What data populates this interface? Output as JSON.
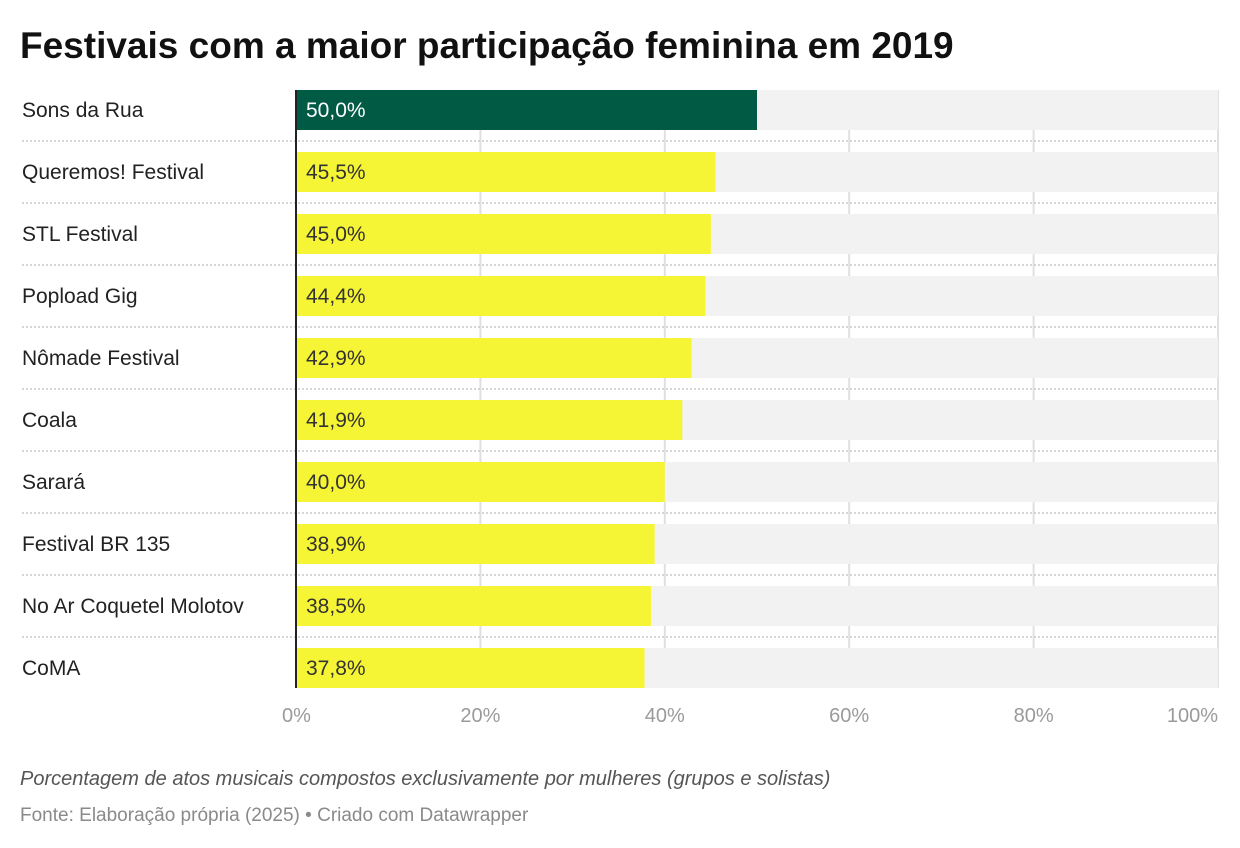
{
  "chart_data": {
    "type": "bar",
    "orientation": "horizontal",
    "title": "Festivais com a maior participação feminina em 2019",
    "categories": [
      "Sons da Rua",
      "Queremos! Festival",
      "STL Festival",
      "Popload Gig",
      "Nômade Festival",
      "Coala",
      "Sarará",
      "Festival BR 135",
      "No Ar Coquetel Molotov",
      "CoMA"
    ],
    "values": [
      50.0,
      45.5,
      45.0,
      44.4,
      42.9,
      41.9,
      40.0,
      38.9,
      38.5,
      37.8
    ],
    "value_labels": [
      "50,0%",
      "45,5%",
      "45,0%",
      "44,4%",
      "42,9%",
      "41,9%",
      "40,0%",
      "38,9%",
      "38,5%",
      "37,8%"
    ],
    "xlim": [
      0,
      100
    ],
    "ticks": [
      0,
      20,
      40,
      60,
      80,
      100
    ],
    "tick_labels": [
      "0%",
      "20%",
      "40%",
      "60%",
      "80%",
      "100%"
    ],
    "grid": true,
    "highlight_color": "#005a44",
    "bar_color": "#f6f535",
    "background_bar_color": "#f2f2f2",
    "notes": "Porcentagem de atos musicais compostos exclusivamente por mulheres (grupos e solistas)",
    "source": "Fonte: Elaboração própria (2025) • Criado com Datawrapper"
  }
}
